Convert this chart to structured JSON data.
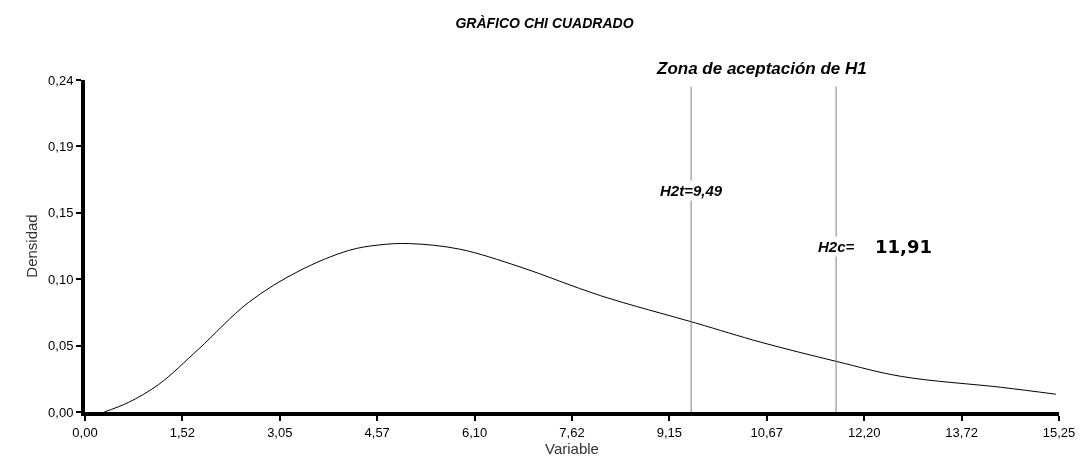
{
  "chart_data": {
    "type": "line",
    "title": "GRÀFICO CHI CUADRADO",
    "xlabel": "Variable",
    "ylabel": "Densidad",
    "x": [
      0.3,
      0.68,
      1.15,
      1.78,
      2.56,
      3.35,
      4.13,
      4.6,
      5.08,
      5.86,
      6.81,
      8.07,
      9.56,
      10.58,
      11.76,
      12.78,
      14.35,
      15.2
    ],
    "series": [
      {
        "color": "#000000",
        "values": [
          0.0,
          0.007,
          0.02,
          0.046,
          0.08,
          0.103,
          0.118,
          0.122,
          0.123,
          0.119,
          0.106,
          0.085,
          0.065,
          0.051,
          0.037,
          0.026,
          0.018,
          0.013
        ]
      }
    ],
    "xlim": [
      0,
      15.25
    ],
    "ylim": [
      0,
      0.2425
    ],
    "xticks": [
      {
        "value": 0,
        "label": "0,00"
      },
      {
        "value": 1.525,
        "label": "1,52"
      },
      {
        "value": 3.05,
        "label": "3,05"
      },
      {
        "value": 4.575,
        "label": "4,57"
      },
      {
        "value": 6.1,
        "label": "6,10"
      },
      {
        "value": 7.625,
        "label": "7,62"
      },
      {
        "value": 9.15,
        "label": "9,15"
      },
      {
        "value": 10.675,
        "label": "10,67"
      },
      {
        "value": 12.2,
        "label": "12,20"
      },
      {
        "value": 13.725,
        "label": "13,72"
      },
      {
        "value": 15.25,
        "label": "15,25"
      }
    ],
    "yticks": [
      {
        "value": 0,
        "label": "0,00"
      },
      {
        "value": 0.0485,
        "label": "0,05"
      },
      {
        "value": 0.097,
        "label": "0,10"
      },
      {
        "value": 0.1455,
        "label": "0,15"
      },
      {
        "value": 0.194,
        "label": "0,19"
      },
      {
        "value": 0.2425,
        "label": "0,24"
      }
    ],
    "ref_lines": [
      {
        "axis": "x",
        "value": 9.49,
        "label": "H2t=9,49",
        "color": "#808080"
      },
      {
        "axis": "x",
        "value": 11.76,
        "label": "H2c=",
        "color": "#808080"
      }
    ],
    "annotations": [
      "Zona de aceptación de H1",
      "11,91"
    ],
    "marker": "none",
    "line_style": "solid"
  }
}
